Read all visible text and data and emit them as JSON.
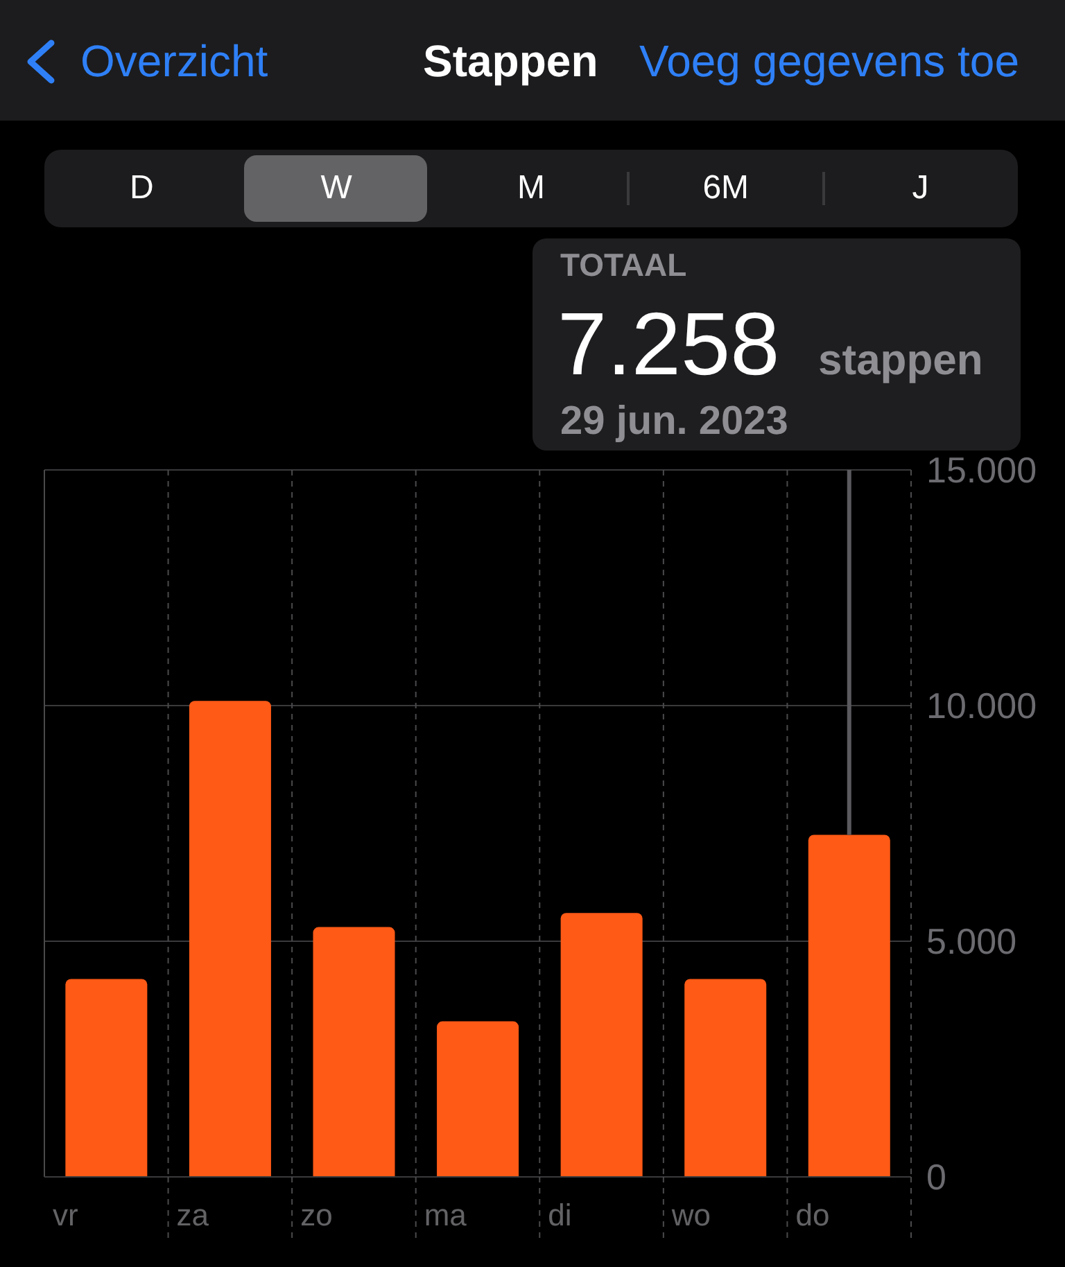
{
  "chart_data": {
    "type": "bar",
    "title": "Stappen",
    "categories": [
      "vr",
      "za",
      "zo",
      "ma",
      "di",
      "wo",
      "do"
    ],
    "values": [
      4200,
      10100,
      5300,
      3300,
      5600,
      4200,
      7258
    ],
    "color": "#ff5a16",
    "ylim": [
      0,
      15000
    ],
    "yticks": [
      0,
      {
        "value": 5000,
        "label": "5.000"
      },
      {
        "value": 10000,
        "label": "10.000"
      },
      {
        "value": 15000,
        "label": "15.000"
      }
    ],
    "grid": true,
    "annotations": [
      "Overzicht",
      "Voeg gegevens toe",
      "D",
      "W",
      "M",
      "6M",
      "J",
      "TOTAAL",
      "7.258",
      "stappen",
      "29 jun. 2023"
    ]
  }
}
